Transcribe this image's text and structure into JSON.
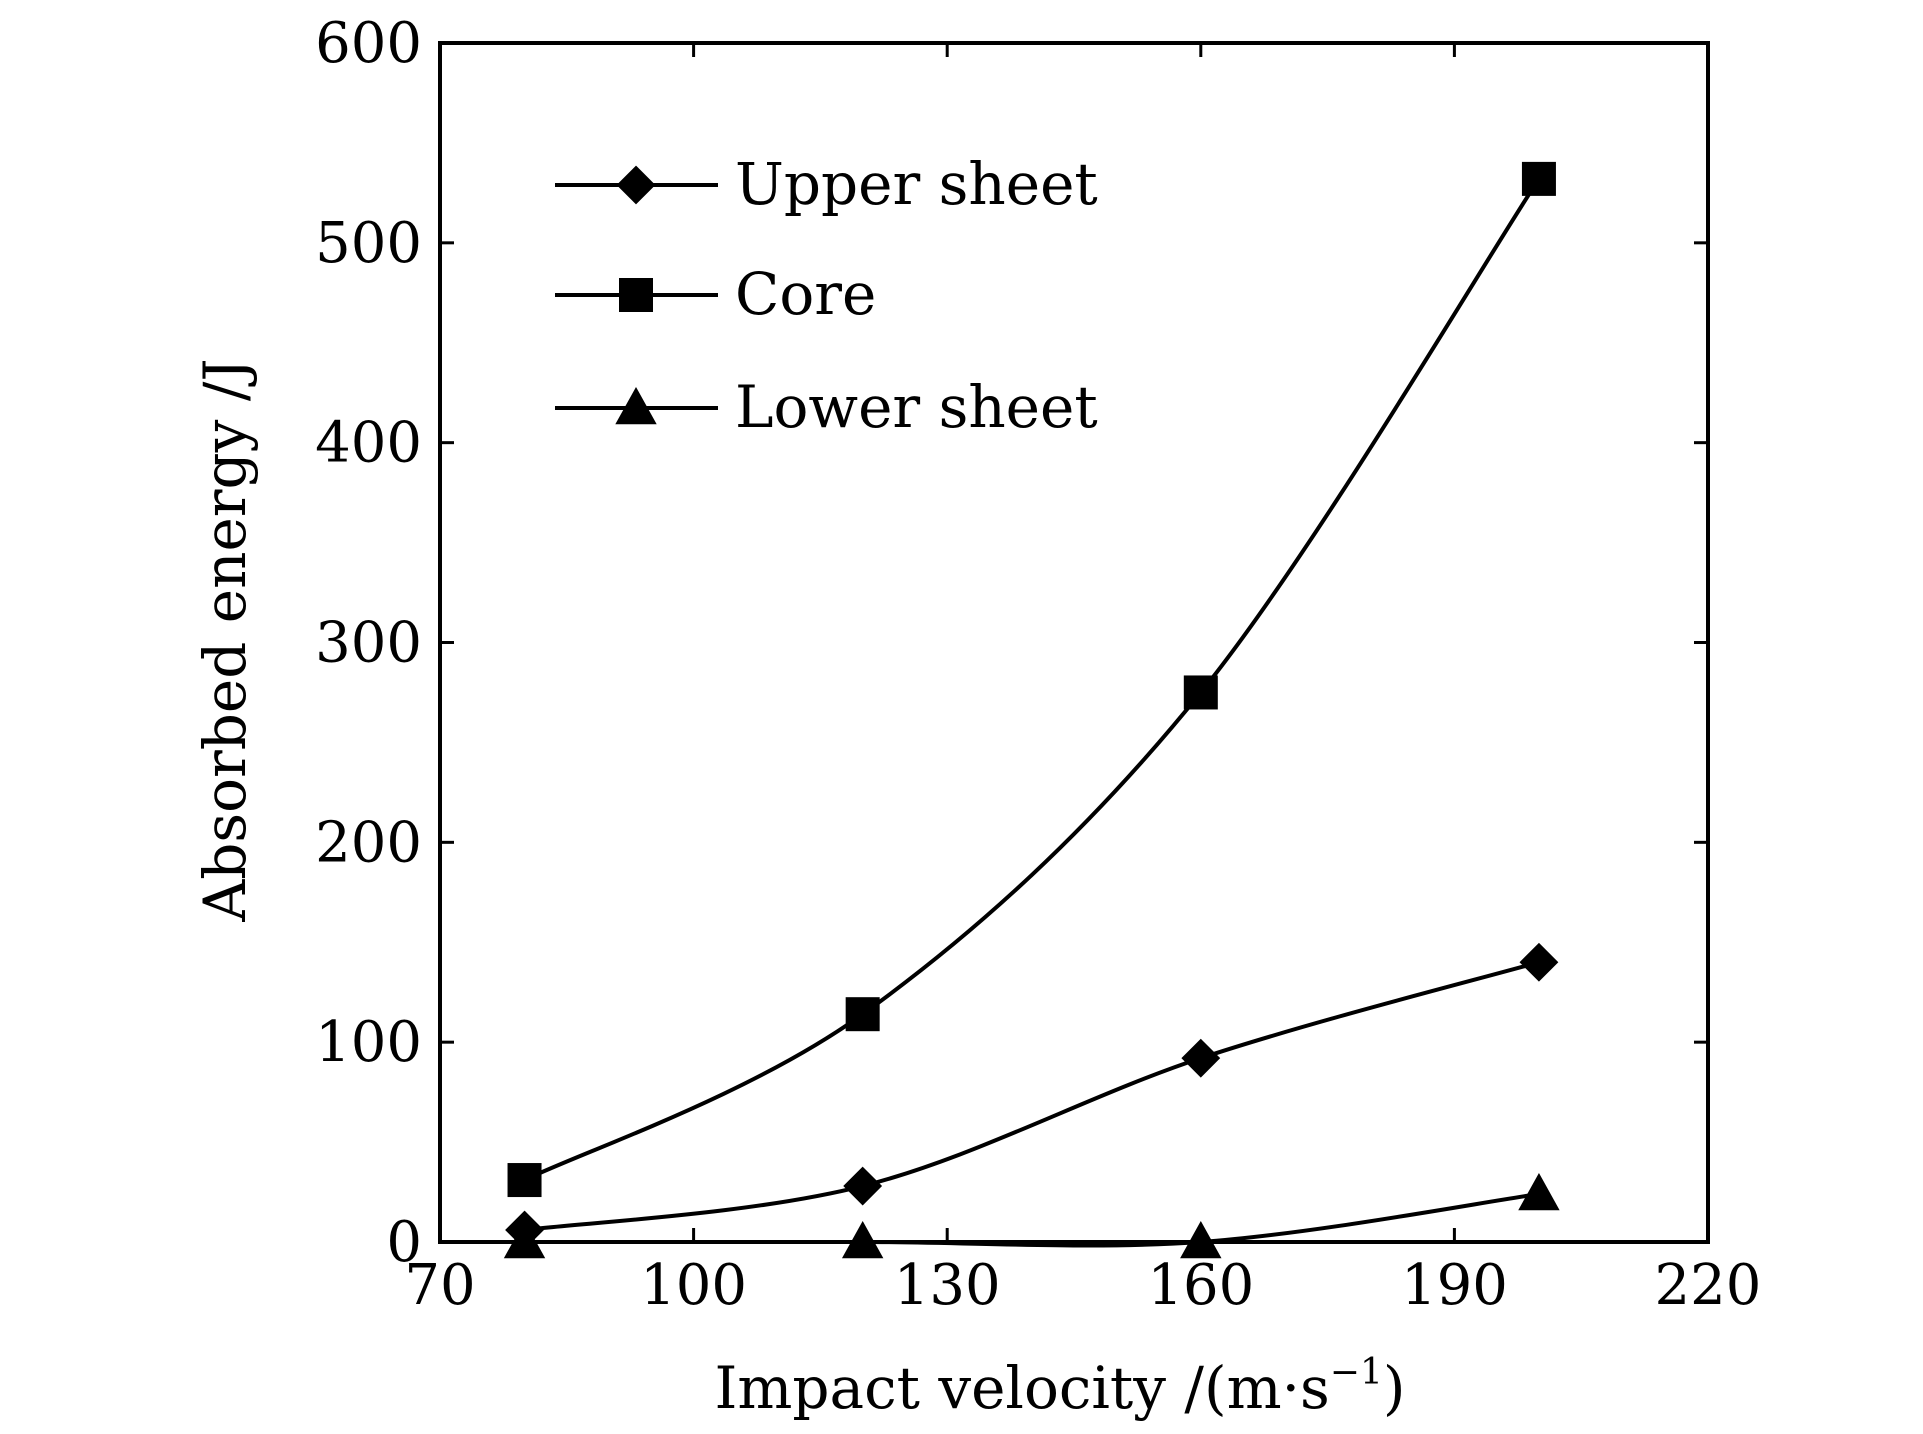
{
  "chart_data": {
    "type": "line",
    "title": "",
    "xlabel": "Impact velocity /(m·s",
    "xlabel_superscript": "−1",
    "xlabel_suffix": ")",
    "ylabel": "Absorbed energy /J",
    "xlim": [
      70,
      220
    ],
    "ylim": [
      0,
      600
    ],
    "xticks": [
      70,
      100,
      130,
      160,
      190,
      220
    ],
    "yticks": [
      0,
      100,
      200,
      300,
      400,
      500,
      600
    ],
    "grid": false,
    "legend_position": "top-left",
    "series": [
      {
        "name": "Upper sheet",
        "marker": "diamond",
        "x": [
          80,
          120,
          160,
          200
        ],
        "y": [
          6,
          28,
          92,
          140
        ]
      },
      {
        "name": "Core",
        "marker": "square",
        "x": [
          80,
          120,
          160,
          200
        ],
        "y": [
          31,
          114,
          275,
          532
        ]
      },
      {
        "name": "Lower sheet",
        "marker": "triangle",
        "x": [
          80,
          120,
          160,
          200
        ],
        "y": [
          0,
          0,
          0,
          24
        ]
      }
    ],
    "colors": {
      "line": "#000000",
      "marker": "#000000"
    }
  }
}
